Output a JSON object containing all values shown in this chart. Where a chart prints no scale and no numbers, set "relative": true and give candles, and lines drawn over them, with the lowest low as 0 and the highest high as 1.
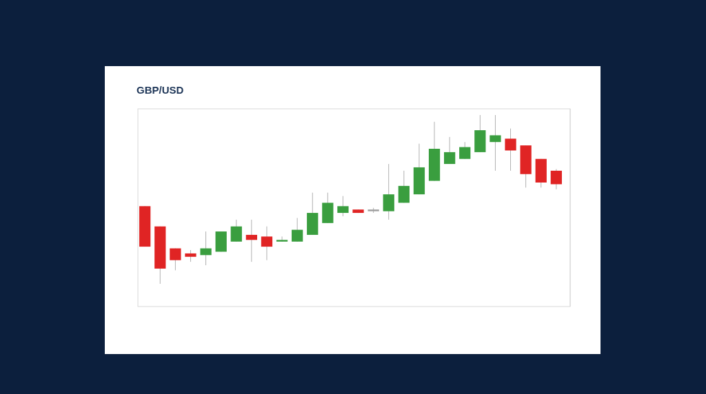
{
  "chart_data": {
    "type": "candlestick",
    "title": "GBP/USD",
    "relative": true,
    "categories": [
      null,
      null,
      null,
      null,
      null,
      null,
      null,
      null,
      null,
      null,
      null,
      null,
      null,
      null,
      null,
      null,
      null,
      null,
      null,
      null,
      null,
      null,
      null,
      null,
      null,
      null,
      null,
      null
    ],
    "ohlc": [
      [
        0.46,
        0.46,
        0.22,
        0.22
      ],
      [
        0.34,
        0.34,
        0,
        0.09
      ],
      [
        0.21,
        0.21,
        0.08,
        0.14
      ],
      [
        0.18,
        0.2,
        0.13,
        0.16
      ],
      [
        0.17,
        0.31,
        0.11,
        0.21
      ],
      [
        0.19,
        0.31,
        0.19,
        0.31
      ],
      [
        0.25,
        0.38,
        0.25,
        0.34
      ],
      [
        0.29,
        0.38,
        0.13,
        0.26
      ],
      [
        0.28,
        0.34,
        0.14,
        0.22
      ],
      [
        0.25,
        0.28,
        0.25,
        0.26
      ],
      [
        0.25,
        0.39,
        0.25,
        0.32
      ],
      [
        0.29,
        0.54,
        0.29,
        0.42
      ],
      [
        0.36,
        0.54,
        0.36,
        0.48
      ],
      [
        0.42,
        0.52,
        0.4,
        0.46
      ],
      [
        0.44,
        0.44,
        0.42,
        0.42
      ],
      [
        0.44,
        0.45,
        0.42,
        0.43
      ],
      [
        0.43,
        0.71,
        0.38,
        0.53
      ],
      [
        0.48,
        0.67,
        0.48,
        0.58
      ],
      [
        0.53,
        0.83,
        0.53,
        0.69
      ],
      [
        0.61,
        0.96,
        0.61,
        0.8
      ],
      [
        0.71,
        0.87,
        0.71,
        0.78
      ],
      [
        0.74,
        0.84,
        0.74,
        0.81
      ],
      [
        0.78,
        1,
        0.78,
        0.91
      ],
      [
        0.84,
        1,
        0.67,
        0.88
      ],
      [
        0.86,
        0.92,
        0.67,
        0.79
      ],
      [
        0.82,
        0.82,
        0.57,
        0.65
      ],
      [
        0.74,
        0.74,
        0.57,
        0.6
      ],
      [
        0.67,
        0.68,
        0.56,
        0.59
      ]
    ],
    "colors": [
      "#e02424",
      "#e02424",
      "#e02424",
      "#e02424",
      "#3a9e3f",
      "#3a9e3f",
      "#3a9e3f",
      "#e02424",
      "#e02424",
      "#3a9e3f",
      "#3a9e3f",
      "#3a9e3f",
      "#3a9e3f",
      "#3a9e3f",
      "#e02424",
      "#9e9e9e",
      "#3a9e3f",
      "#3a9e3f",
      "#3a9e3f",
      "#3a9e3f",
      "#3a9e3f",
      "#3a9e3f",
      "#3a9e3f",
      "#3a9e3f",
      "#e02424",
      "#e02424",
      "#e02424",
      "#e02424"
    ]
  }
}
